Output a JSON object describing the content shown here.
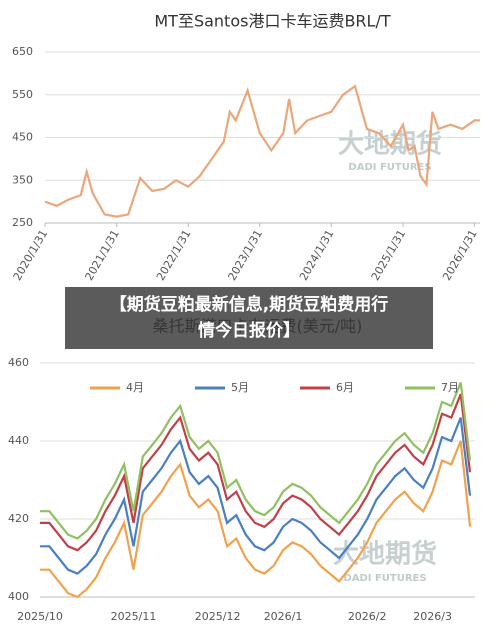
{
  "chart_data": [
    {
      "type": "line",
      "title": "MT至Santos港口卡车运费BRL/T",
      "color": "#eaa77a",
      "x": [
        "2020/1/31",
        "2020/3/31",
        "2020/5/31",
        "2020/7/31",
        "2020/8/31",
        "2020/9/30",
        "2020/11/30",
        "2021/1/31",
        "2021/3/31",
        "2021/5/31",
        "2021/7/31",
        "2021/9/30",
        "2021/11/30",
        "2022/1/31",
        "2022/3/31",
        "2022/5/31",
        "2022/7/31",
        "2022/8/31",
        "2022/9/30",
        "2022/11/30",
        "2023/1/31",
        "2023/3/31",
        "2023/5/31",
        "2023/6/30",
        "2023/7/31",
        "2023/9/30",
        "2023/11/30",
        "2024/1/31",
        "2024/3/31",
        "2024/5/31",
        "2024/7/31",
        "2024/9/30",
        "2024/11/30",
        "2025/1/31",
        "2025/2/28",
        "2025/3/31",
        "2025/4/30",
        "2025/5/31",
        "2025/6/30",
        "2025/7/31",
        "2025/9/30",
        "2025/11/30",
        "2026/1/31",
        "2026/2/28"
      ],
      "values": [
        300,
        290,
        305,
        315,
        370,
        320,
        270,
        265,
        270,
        355,
        325,
        330,
        350,
        335,
        360,
        400,
        440,
        510,
        490,
        560,
        460,
        420,
        460,
        540,
        460,
        490,
        500,
        510,
        550,
        570,
        470,
        460,
        430,
        480,
        420,
        430,
        360,
        340,
        510,
        470,
        480,
        470,
        490,
        490
      ],
      "xlim": [
        "2020/1/31",
        "2026/2/28"
      ],
      "xticks": [
        "2020/1/31",
        "2021/1/31",
        "2022/1/31",
        "2023/1/31",
        "2024/1/31",
        "2025/1/31",
        "2026/1/31"
      ],
      "ylim": [
        250,
        650
      ],
      "yticks": [
        250,
        350,
        450,
        550,
        650
      ],
      "grid": true,
      "annotations": [
        "大地期货",
        "DADI FUTURES"
      ]
    },
    {
      "type": "line",
      "title": "桑托斯港口卡车运费(美元/吨)",
      "categories": [
        "2025/10",
        null,
        null,
        null,
        null,
        null,
        null,
        null,
        null,
        null,
        "2025/11",
        null,
        null,
        null,
        null,
        null,
        null,
        null,
        null,
        "2025/12",
        null,
        null,
        null,
        null,
        null,
        null,
        "2026/1",
        null,
        null,
        null,
        null,
        null,
        null,
        null,
        null,
        "2026/2",
        null,
        null,
        null,
        null,
        null,
        null,
        "2026/3",
        null,
        null,
        null,
        null
      ],
      "series": [
        {
          "name": "4月",
          "color": "#f0a24e",
          "values": [
            407,
            407,
            404,
            401,
            400,
            402,
            405,
            410,
            414,
            419,
            407,
            421,
            424,
            427,
            431,
            434,
            426,
            423,
            425,
            422,
            413,
            415,
            410,
            407,
            406,
            408,
            412,
            414,
            413,
            411,
            408,
            406,
            404,
            407,
            410,
            414,
            419,
            422,
            425,
            427,
            424,
            422,
            427,
            435,
            434,
            440,
            418
          ]
        },
        {
          "name": "5月",
          "color": "#4a7fc0",
          "values": [
            413,
            413,
            410,
            407,
            406,
            408,
            411,
            416,
            420,
            425,
            413,
            427,
            430,
            433,
            437,
            440,
            432,
            429,
            431,
            428,
            419,
            421,
            416,
            413,
            412,
            414,
            418,
            420,
            419,
            417,
            414,
            412,
            410,
            413,
            416,
            420,
            425,
            428,
            431,
            433,
            430,
            428,
            433,
            441,
            440,
            446,
            426
          ]
        },
        {
          "name": "6月",
          "color": "#c0404a",
          "values": [
            419,
            419,
            416,
            413,
            412,
            414,
            417,
            422,
            426,
            431,
            419,
            433,
            436,
            439,
            443,
            446,
            438,
            435,
            437,
            434,
            425,
            427,
            422,
            419,
            418,
            420,
            424,
            426,
            425,
            423,
            420,
            418,
            416,
            419,
            422,
            426,
            431,
            434,
            437,
            439,
            436,
            434,
            439,
            447,
            446,
            452,
            432
          ]
        },
        {
          "name": "7月",
          "color": "#90c060",
          "values": [
            422,
            422,
            419,
            416,
            415,
            417,
            420,
            425,
            429,
            434,
            422,
            436,
            439,
            442,
            446,
            449,
            441,
            438,
            440,
            437,
            428,
            430,
            425,
            422,
            421,
            423,
            427,
            429,
            428,
            426,
            423,
            421,
            419,
            422,
            425,
            429,
            434,
            437,
            440,
            442,
            439,
            437,
            442,
            450,
            449,
            455,
            435
          ]
        }
      ],
      "ylim": [
        400,
        460
      ],
      "yticks": [
        400,
        420,
        440,
        460
      ],
      "grid": true,
      "legend": "top",
      "annotations": [
        "大地期货",
        "DADI FUTURES"
      ]
    }
  ],
  "banner": {
    "lines": [
      "【期货豆粕最新信息,期货豆粕费用行",
      "情今日报价】"
    ]
  }
}
